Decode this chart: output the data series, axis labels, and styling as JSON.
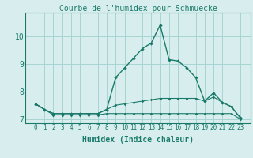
{
  "title": "Courbe de l'humidex pour Schmuecke",
  "xlabel": "Humidex (Indice chaleur)",
  "background_color": "#d8eeee",
  "grid_color": "#a8d4d4",
  "line_color": "#1a7a6a",
  "x_values": [
    0,
    1,
    2,
    3,
    4,
    5,
    6,
    7,
    8,
    9,
    10,
    11,
    12,
    13,
    14,
    15,
    16,
    17,
    18,
    19,
    20,
    21,
    22,
    23
  ],
  "series1": [
    7.55,
    7.35,
    7.2,
    7.2,
    7.2,
    7.2,
    7.2,
    7.2,
    7.35,
    8.5,
    8.85,
    9.2,
    9.55,
    9.75,
    10.4,
    9.15,
    9.1,
    8.85,
    8.5,
    7.65,
    7.95,
    7.6,
    7.45,
    7.05
  ],
  "series2": [
    7.55,
    7.35,
    7.2,
    7.2,
    7.2,
    7.2,
    7.2,
    7.2,
    7.35,
    7.5,
    7.55,
    7.6,
    7.65,
    7.7,
    7.75,
    7.75,
    7.75,
    7.75,
    7.75,
    7.65,
    7.8,
    7.6,
    7.45,
    7.05
  ],
  "series3": [
    7.55,
    7.35,
    7.15,
    7.15,
    7.15,
    7.15,
    7.15,
    7.15,
    7.2,
    7.2,
    7.2,
    7.2,
    7.2,
    7.2,
    7.2,
    7.2,
    7.2,
    7.2,
    7.2,
    7.2,
    7.2,
    7.2,
    7.2,
    7.0
  ],
  "ylim": [
    6.85,
    10.85
  ],
  "yticks": [
    7,
    8,
    9,
    10
  ],
  "xticks": [
    0,
    1,
    2,
    3,
    4,
    5,
    6,
    7,
    8,
    9,
    10,
    11,
    12,
    13,
    14,
    15,
    16,
    17,
    18,
    19,
    20,
    21,
    22,
    23
  ],
  "title_fontsize": 7,
  "xlabel_fontsize": 7,
  "tick_fontsize": 5.5,
  "ytick_fontsize": 7
}
